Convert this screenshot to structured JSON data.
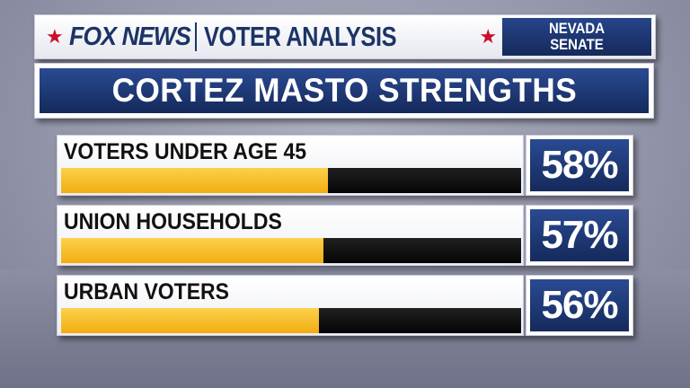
{
  "header": {
    "network": "FOX NEWS",
    "section": "VOTER ANALYSIS",
    "race_line1": "NEVADA",
    "race_line2": "SENATE"
  },
  "colors": {
    "navy": "#1c3466",
    "bar_fill": "#f5b81e",
    "star": "#c8102e"
  },
  "chart_data": {
    "type": "bar",
    "title": "CORTEZ MASTO STRENGTHS",
    "categories": [
      "VOTERS UNDER AGE 45",
      "UNION HOUSEHOLDS",
      "URBAN VOTERS"
    ],
    "values": [
      58,
      57,
      56
    ],
    "value_labels": [
      "58%",
      "57%",
      "56%"
    ],
    "xlim": [
      0,
      100
    ],
    "orientation": "horizontal",
    "grid": false,
    "legend": "none"
  }
}
